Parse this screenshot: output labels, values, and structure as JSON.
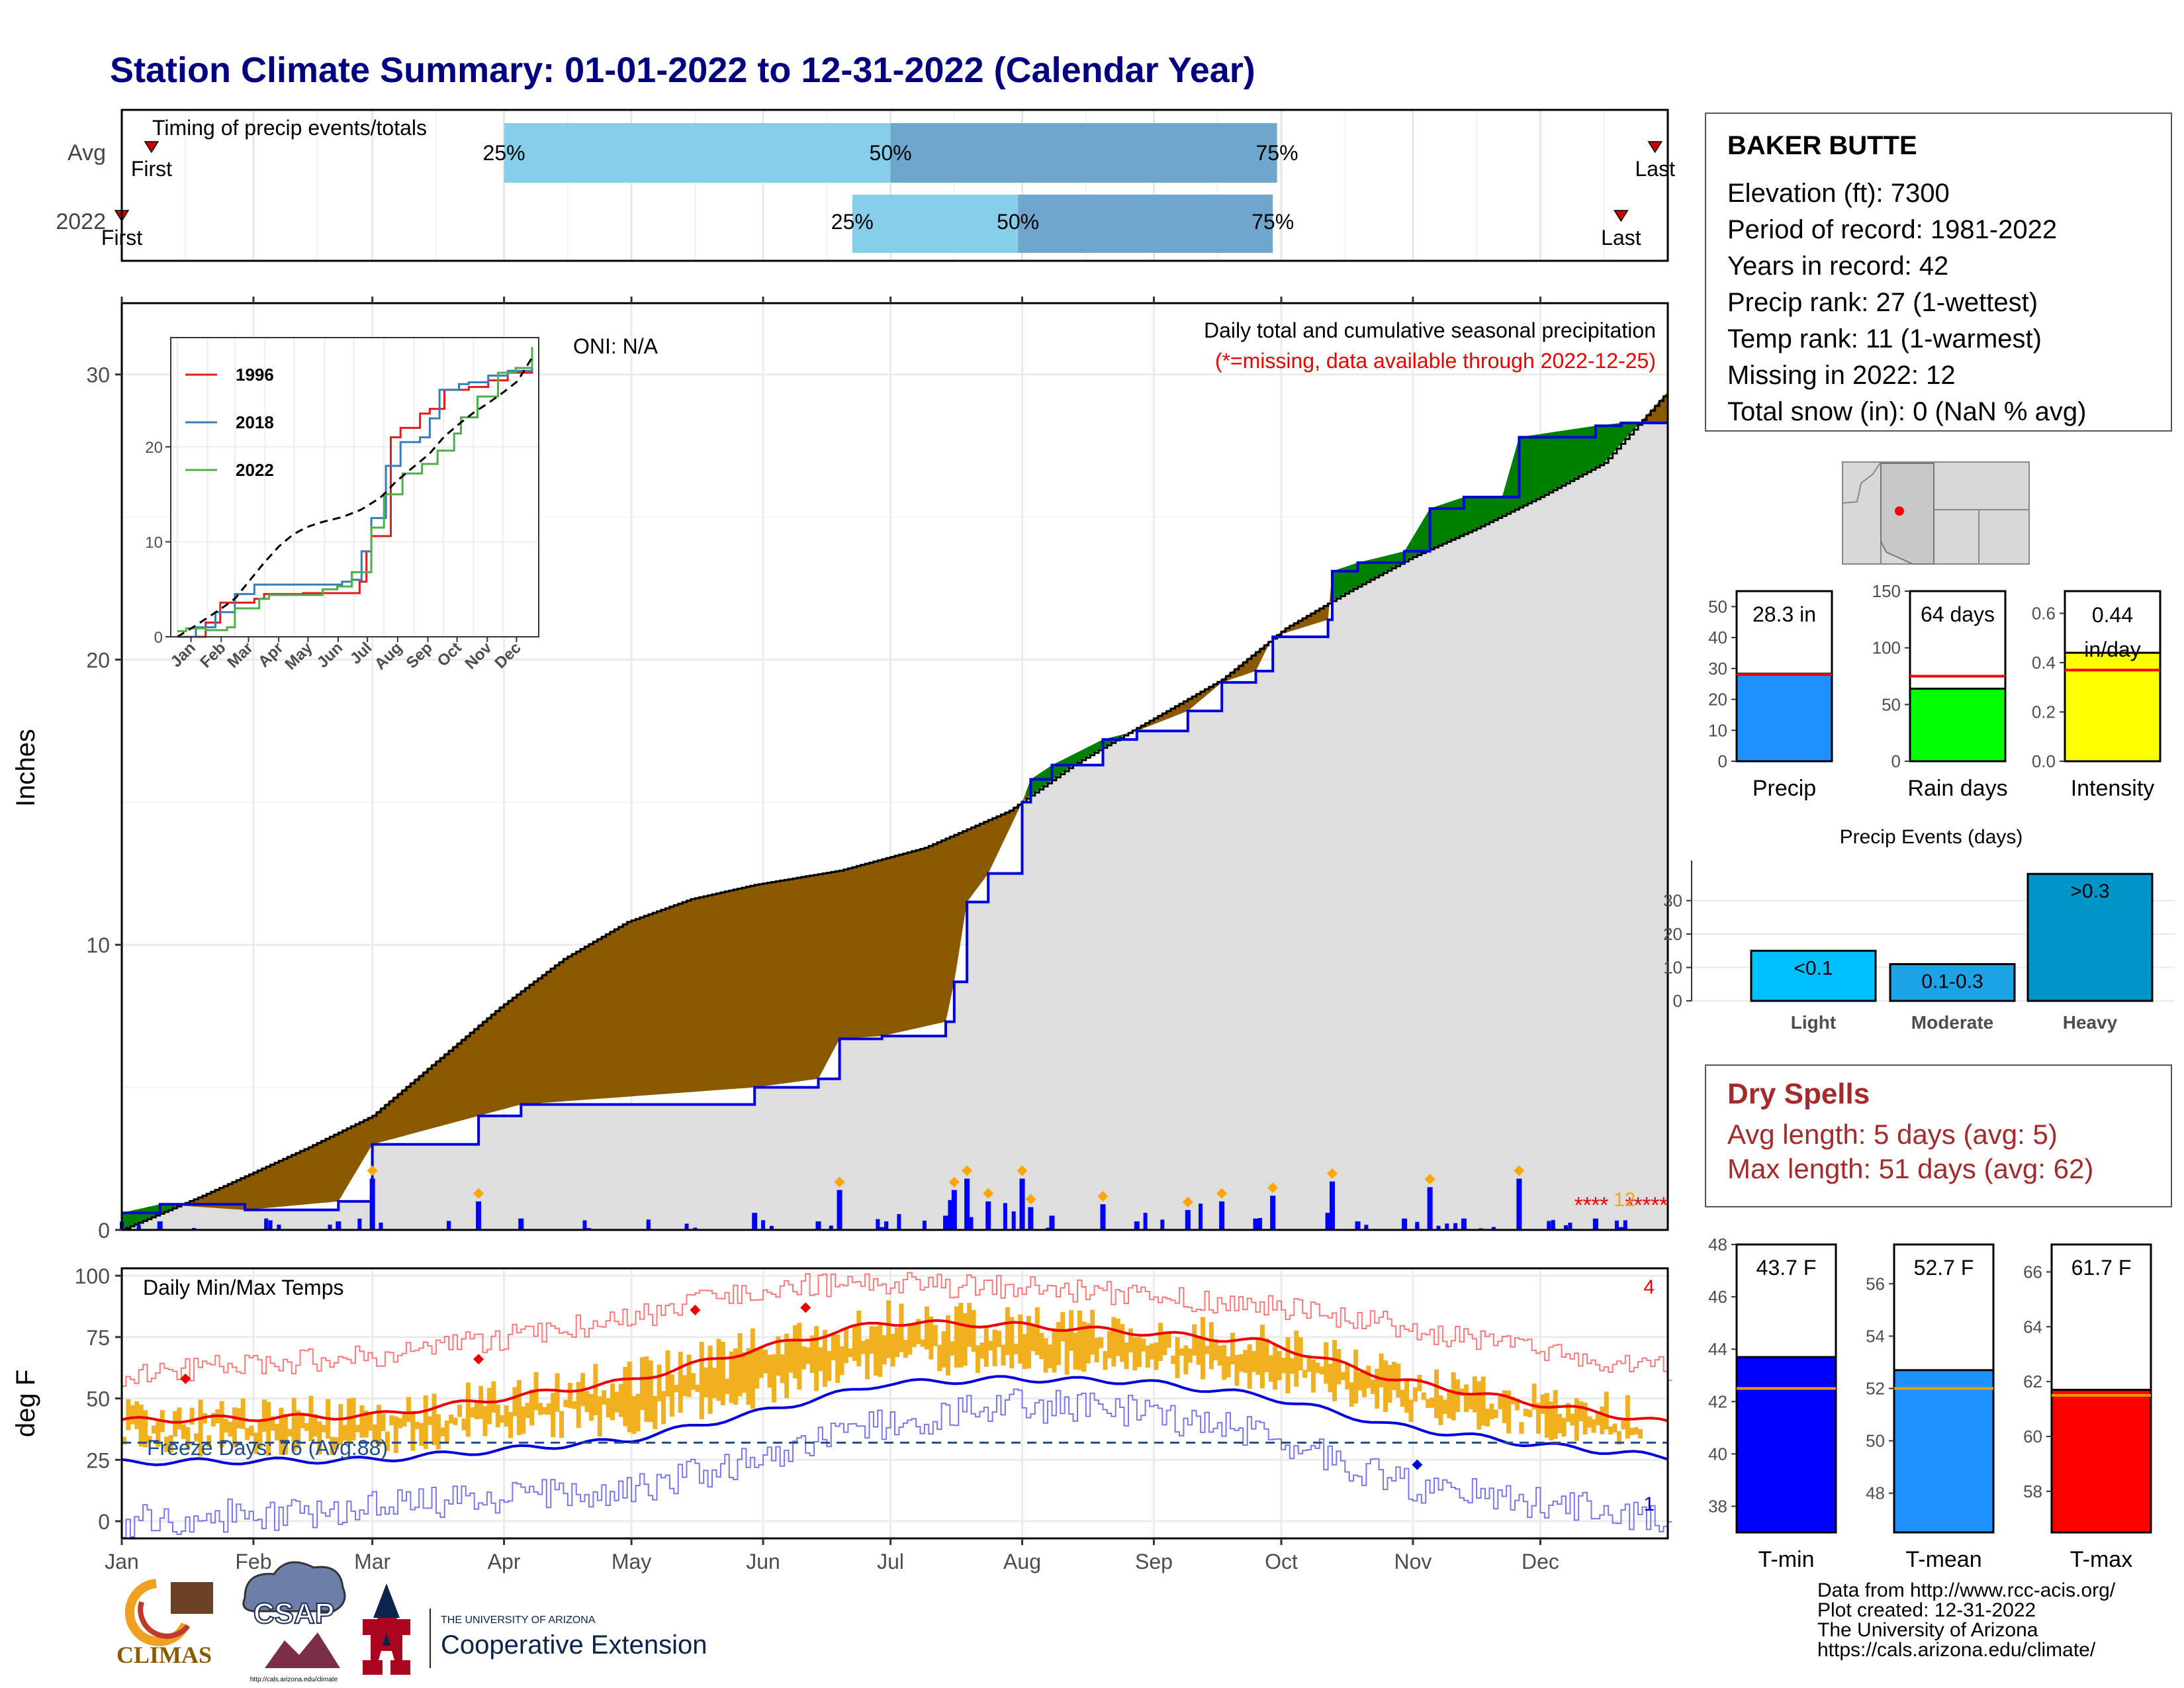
{
  "title": "Station Climate Summary: 01-01-2022 to 12-31-2022 (Calendar Year)",
  "timing_panel": {
    "label": "Timing of precip events/totals",
    "rows": [
      {
        "name": "Avg",
        "first_label": "First",
        "last_label": "Last",
        "p25": "25%",
        "p50": "50%",
        "p75": "75%"
      },
      {
        "name": "2022",
        "first_label": "First",
        "last_label": "Last",
        "p25": "25%",
        "p50": "50%",
        "p75": "75%"
      }
    ],
    "colors": {
      "light": "#87ceeb",
      "dark": "#6ea6cd",
      "marker": "#cc0000"
    }
  },
  "precip_panel": {
    "ylabel": "Inches",
    "yticks": [
      "0",
      "10",
      "20",
      "30"
    ],
    "oni": "ONI: N/A",
    "caption": "Daily total and cumulative seasonal precipitation",
    "missing_note": "(*=missing, data available through 2022-12-25)",
    "missing_count": "12",
    "colors": {
      "deficit": "#8b5a00",
      "surplus": "#008000",
      "fill": "#dedede",
      "line": "#0000dd",
      "bars": "#0000ff",
      "marker": "#ffa500"
    }
  },
  "inset": {
    "legend": [
      "1996",
      "2018",
      "2022"
    ],
    "legend_colors": [
      "#e41a1c",
      "#377eb8",
      "#4daf4a"
    ],
    "yticks": [
      "0",
      "10",
      "20"
    ],
    "months": [
      "Jan",
      "Feb",
      "Mar",
      "Apr",
      "May",
      "Jun",
      "Jul",
      "Aug",
      "Sep",
      "Oct",
      "Nov",
      "Dec"
    ]
  },
  "temp_panel": {
    "ylabel": "deg F",
    "yticks": [
      "0",
      "25",
      "50",
      "75",
      "100"
    ],
    "label": "Daily Min/Max Temps",
    "freeze": "Freeze Days: 76 (Avg:88)",
    "record_high_count": "4",
    "record_low_count": "1",
    "freeze_threshold": 32,
    "colors": {
      "bars": "#f0b020",
      "avg_max": "#ee0000",
      "avg_min": "#0000dd",
      "rec_max": "#ff7777",
      "rec_min": "#7777ee",
      "freeze_line": "#1f4e8c"
    }
  },
  "months": [
    "Jan",
    "Feb",
    "Mar",
    "Apr",
    "May",
    "Jun",
    "Jul",
    "Aug",
    "Sep",
    "Oct",
    "Nov",
    "Dec"
  ],
  "station": {
    "name": "BAKER BUTTE",
    "lines": [
      "Elevation (ft): 7300",
      "Period of record: 1981-2022",
      "Years in record: 42",
      "Precip rank: 27 (1-wettest)",
      "Temp rank: 11 (1-warmest)",
      "Missing in 2022: 12",
      "Total snow (in): 0 (NaN % avg)"
    ]
  },
  "mini_precip": [
    {
      "label": "Precip",
      "value_text": "28.3 in",
      "yticks": [
        "0",
        "10",
        "20",
        "30",
        "40",
        "50"
      ],
      "color": "#1e90ff"
    },
    {
      "label": "Rain days",
      "value_text": "64 days",
      "yticks": [
        "0",
        "50",
        "100",
        "150"
      ],
      "color": "#00ff00"
    },
    {
      "label": "Intensity",
      "value_text": "0.44 in/day",
      "yticks": [
        "0.0",
        "0.2",
        "0.4",
        "0.6"
      ],
      "color": "#ffff00"
    }
  ],
  "events": {
    "title": "Precip Events (days)",
    "categories": [
      "Light",
      "Moderate",
      "Heavy"
    ],
    "labels": [
      "<0.1",
      "0.1-0.3",
      ">0.3"
    ],
    "yticks": [
      "0",
      "10",
      "20",
      "30"
    ],
    "colors": [
      "#00bfff",
      "#1ca3e6",
      "#0095c8"
    ]
  },
  "dry": {
    "title": "Dry Spells",
    "avg": "Avg length: 5 days (avg: 5)",
    "max": "Max length: 51 days (avg: 62)"
  },
  "mini_temp": [
    {
      "label": "T-min",
      "value_text": "43.7 F",
      "yticks": [
        "38",
        "40",
        "42",
        "44",
        "46",
        "48"
      ],
      "color": "#0000ff"
    },
    {
      "label": "T-mean",
      "value_text": "52.7 F",
      "yticks": [
        "48",
        "50",
        "52",
        "54",
        "56"
      ],
      "color": "#1e90ff"
    },
    {
      "label": "T-max",
      "value_text": "61.7 F",
      "yticks": [
        "58",
        "60",
        "62",
        "64",
        "66"
      ],
      "color": "#ff0000"
    }
  ],
  "credits": [
    "Data from http://www.rcc-acis.org/",
    "Plot created: 12-31-2022",
    "The University of Arizona",
    "https://cals.arizona.edu/climate/"
  ],
  "logos": {
    "climas": "CLIMAS",
    "csap": "CSAP",
    "csap_url": "http://cals.arizona.edu/climate",
    "ua_small": "THE UNIVERSITY OF ARIZONA",
    "ua_big": "Cooperative Extension"
  },
  "chart_data": [
    {
      "type": "bar",
      "title": "Timing of precip events/totals",
      "categories": [
        "Avg",
        "2022"
      ],
      "series": [
        {
          "name": "25%",
          "values": [
            "2022-04-01",
            "2022-06-22"
          ]
        },
        {
          "name": "50%",
          "values": [
            "2022-07-01",
            "2022-07-31"
          ]
        },
        {
          "name": "75%",
          "values": [
            "2022-09-30",
            "2022-09-29"
          ]
        },
        {
          "name": "First",
          "values": [
            "2022-01-08",
            "2022-01-01"
          ]
        },
        {
          "name": "Last",
          "values": [
            "2022-12-28",
            "2022-12-20"
          ]
        }
      ]
    },
    {
      "type": "area",
      "title": "Daily total and cumulative seasonal precipitation",
      "ylabel": "Inches",
      "ylim": [
        0,
        32.5
      ],
      "x_months": [
        "Jan",
        "Feb",
        "Mar",
        "Apr",
        "May",
        "Jun",
        "Jul",
        "Aug",
        "Sep",
        "Oct",
        "Nov",
        "Dec"
      ],
      "series": [
        {
          "name": "2022 cumulative",
          "x": [
            1,
            10,
            30,
            52,
            60,
            85,
            95,
            150,
            165,
            170,
            180,
            195,
            197,
            200,
            205,
            213,
            215,
            220,
            232,
            240,
            252,
            260,
            268,
            272,
            285,
            286,
            292,
            303,
            309,
            317,
            326,
            330,
            348,
            354,
            359,
            365
          ],
          "y": [
            0.6,
            0.9,
            0.7,
            1.0,
            3.0,
            4.0,
            4.4,
            5.0,
            5.3,
            6.7,
            6.8,
            7.3,
            8.7,
            11.5,
            12.5,
            15.0,
            15.8,
            16.3,
            17.2,
            17.5,
            18.2,
            19.2,
            19.6,
            20.8,
            21.4,
            23.1,
            23.4,
            23.8,
            25.3,
            25.7,
            25.7,
            27.8,
            28.2,
            28.3,
            28.3,
            28.3
          ]
        },
        {
          "name": "average cumulative",
          "x": [
            1,
            20,
            45,
            60,
            75,
            90,
            105,
            120,
            135,
            150,
            170,
            180,
            190,
            210,
            225,
            240,
            260,
            275,
            290,
            305,
            320,
            335,
            350,
            365
          ],
          "y": [
            0.0,
            1.2,
            2.9,
            4.0,
            5.9,
            7.8,
            9.5,
            10.8,
            11.6,
            12.1,
            12.6,
            13.0,
            13.4,
            14.7,
            16.3,
            17.6,
            19.3,
            21.1,
            22.4,
            23.6,
            24.6,
            25.7,
            26.9,
            29.4
          ]
        }
      ]
    },
    {
      "type": "line",
      "title": "Daily Min/Max Temps",
      "ylabel": "deg F",
      "ylim": [
        -7,
        103
      ],
      "series": [
        {
          "name": "avg max",
          "x": [
            1,
            60,
            120,
            150,
            180,
            210,
            240,
            270,
            300,
            330,
            365
          ],
          "y": [
            41,
            43,
            57,
            70,
            81,
            80,
            77,
            73,
            58,
            49,
            40
          ]
        },
        {
          "name": "avg min",
          "x": [
            1,
            60,
            120,
            150,
            180,
            210,
            240,
            270,
            300,
            330,
            365
          ],
          "y": [
            24,
            25,
            33,
            44,
            56,
            58,
            57,
            51,
            39,
            32,
            26
          ]
        },
        {
          "name": "record max",
          "x": [
            1,
            60,
            120,
            150,
            180,
            210,
            240,
            270,
            300,
            330,
            365
          ],
          "y": [
            60,
            67,
            82,
            95,
            97,
            95,
            92,
            88,
            80,
            70,
            62
          ]
        },
        {
          "name": "record min",
          "x": [
            1,
            60,
            120,
            150,
            180,
            210,
            240,
            270,
            300,
            330,
            365
          ],
          "y": [
            0,
            5,
            13,
            25,
            40,
            47,
            45,
            35,
            16,
            8,
            2
          ]
        }
      ]
    },
    {
      "type": "bar",
      "categories": [
        "Precip",
        "Rain days",
        "Intensity"
      ],
      "series": [
        {
          "name": "2022",
          "values": [
            28.3,
            64,
            0.44
          ]
        },
        {
          "name": "avg",
          "values": [
            28.0,
            75,
            0.37
          ]
        }
      ]
    },
    {
      "type": "bar",
      "title": "Precip Events (days)",
      "categories": [
        "Light",
        "Moderate",
        "Heavy"
      ],
      "values": [
        15,
        11,
        38
      ],
      "ylim": [
        0,
        42
      ]
    },
    {
      "type": "bar",
      "categories": [
        "T-min",
        "T-mean",
        "T-max"
      ],
      "series": [
        {
          "name": "2022",
          "values": [
            43.7,
            52.7,
            61.7
          ]
        },
        {
          "name": "avg",
          "values": [
            42.5,
            52.0,
            61.5
          ]
        }
      ]
    }
  ]
}
